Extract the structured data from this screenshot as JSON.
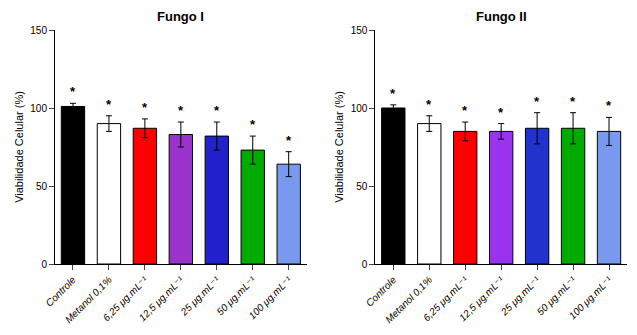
{
  "chart_data": [
    {
      "type": "bar",
      "title": "Fungo I",
      "categories": [
        "Controle",
        "Metanol 0,1%",
        "6,25 μg.mL⁻¹",
        "12,5 μg.mL⁻¹",
        "25 μg.mL⁻¹",
        "50 μg.mL⁻¹",
        "100 μg.mL⁻¹"
      ],
      "values": [
        101,
        90,
        87,
        83,
        82,
        73,
        64
      ],
      "errors": [
        2,
        5,
        6,
        8,
        9,
        9,
        8
      ],
      "colors": [
        "#000000",
        "#ffffff",
        "#ff0000",
        "#9933cc",
        "#2222cc",
        "#00aa00",
        "#7799ee"
      ],
      "annotations": [
        "*",
        "*",
        "*",
        "*",
        "*",
        "*",
        "*"
      ],
      "ylabel": "Viabilidade Celular (%)",
      "ylim": [
        0,
        150
      ],
      "yticks": [
        0,
        50,
        100,
        150
      ],
      "grid": false
    },
    {
      "type": "bar",
      "title": "Fungo II",
      "categories": [
        "Controle",
        "Metanol 0,1%",
        "6,25 μg.mL⁻¹",
        "12,5 μg.mL⁻¹",
        "25 μg.mL⁻¹",
        "50 μg.mL⁻¹",
        "100 μg.mL⁻¹"
      ],
      "values": [
        100,
        90,
        85,
        85,
        87,
        87,
        85
      ],
      "errors": [
        2,
        5,
        6,
        5,
        10,
        10,
        9
      ],
      "colors": [
        "#000000",
        "#ffffff",
        "#ff0000",
        "#9933ee",
        "#2233cc",
        "#00aa00",
        "#7799ee"
      ],
      "annotations": [
        "*",
        "*",
        "*",
        "*",
        "*",
        "*",
        "*"
      ],
      "ylabel": "Viabilidade Celular (%)",
      "ylim": [
        0,
        150
      ],
      "yticks": [
        0,
        50,
        100,
        150
      ],
      "grid": false
    }
  ]
}
